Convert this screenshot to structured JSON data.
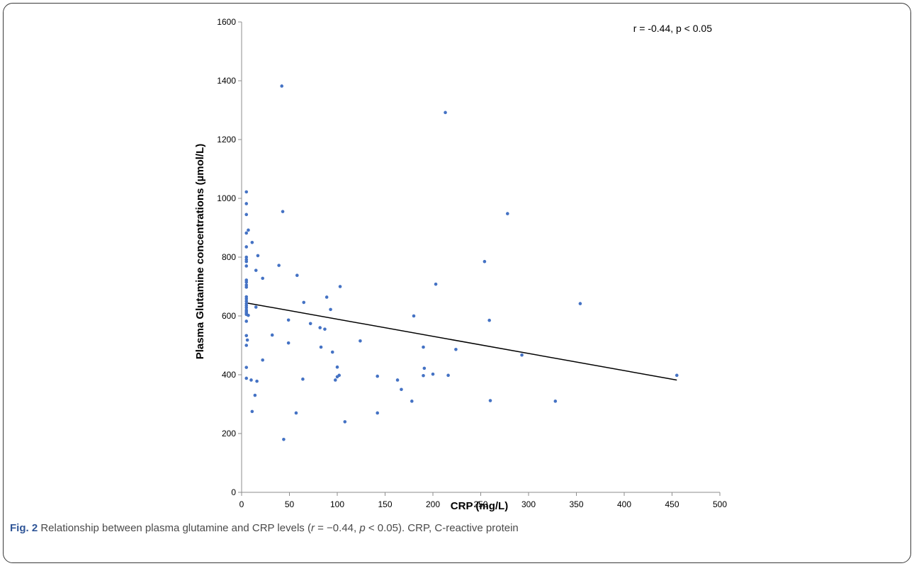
{
  "chart_data": {
    "type": "scatter",
    "xlabel": "CRP (mg/L)",
    "ylabel": "Plasma Glutamine concentrations (µmol/L)",
    "xlim": [
      0,
      500
    ],
    "ylim": [
      0,
      1600
    ],
    "x_ticks": [
      "0",
      "50",
      "100",
      "150",
      "200",
      "250",
      "300",
      "350",
      "400",
      "450",
      "500"
    ],
    "y_ticks": [
      "0",
      "200",
      "400",
      "600",
      "800",
      "1000",
      "1200",
      "1400",
      "1600"
    ],
    "grid": false,
    "annotation": "r = -0.44, p < 0.05",
    "marker_color": "#4472c4",
    "trendline": {
      "x": [
        4,
        455
      ],
      "y": [
        645,
        382
      ],
      "color": "#000000"
    },
    "points": [
      {
        "x": 5,
        "y": 1022
      },
      {
        "x": 5,
        "y": 982
      },
      {
        "x": 5,
        "y": 945
      },
      {
        "x": 7,
        "y": 892
      },
      {
        "x": 5,
        "y": 882
      },
      {
        "x": 5,
        "y": 835
      },
      {
        "x": 5,
        "y": 800
      },
      {
        "x": 5,
        "y": 792
      },
      {
        "x": 5,
        "y": 785
      },
      {
        "x": 5,
        "y": 770
      },
      {
        "x": 5,
        "y": 722
      },
      {
        "x": 5,
        "y": 715
      },
      {
        "x": 5,
        "y": 705
      },
      {
        "x": 5,
        "y": 698
      },
      {
        "x": 5,
        "y": 665
      },
      {
        "x": 5,
        "y": 658
      },
      {
        "x": 5,
        "y": 650
      },
      {
        "x": 5,
        "y": 642
      },
      {
        "x": 5,
        "y": 635
      },
      {
        "x": 5,
        "y": 628
      },
      {
        "x": 5,
        "y": 620
      },
      {
        "x": 5,
        "y": 615
      },
      {
        "x": 5,
        "y": 610
      },
      {
        "x": 5,
        "y": 605
      },
      {
        "x": 5,
        "y": 582
      },
      {
        "x": 5,
        "y": 533
      },
      {
        "x": 6,
        "y": 518
      },
      {
        "x": 5,
        "y": 500
      },
      {
        "x": 5,
        "y": 425
      },
      {
        "x": 5,
        "y": 388
      },
      {
        "x": 7,
        "y": 602
      },
      {
        "x": 11,
        "y": 850
      },
      {
        "x": 17,
        "y": 805
      },
      {
        "x": 15,
        "y": 755
      },
      {
        "x": 22,
        "y": 728
      },
      {
        "x": 15,
        "y": 630
      },
      {
        "x": 10,
        "y": 382
      },
      {
        "x": 16,
        "y": 378
      },
      {
        "x": 22,
        "y": 450
      },
      {
        "x": 14,
        "y": 330
      },
      {
        "x": 11,
        "y": 275
      },
      {
        "x": 42,
        "y": 1382
      },
      {
        "x": 43,
        "y": 955
      },
      {
        "x": 39,
        "y": 772
      },
      {
        "x": 58,
        "y": 738
      },
      {
        "x": 65,
        "y": 646
      },
      {
        "x": 32,
        "y": 535
      },
      {
        "x": 49,
        "y": 586
      },
      {
        "x": 49,
        "y": 508
      },
      {
        "x": 64,
        "y": 385
      },
      {
        "x": 44,
        "y": 180
      },
      {
        "x": 57,
        "y": 270
      },
      {
        "x": 72,
        "y": 574
      },
      {
        "x": 82,
        "y": 560
      },
      {
        "x": 87,
        "y": 555
      },
      {
        "x": 83,
        "y": 494
      },
      {
        "x": 89,
        "y": 664
      },
      {
        "x": 93,
        "y": 622
      },
      {
        "x": 95,
        "y": 477
      },
      {
        "x": 103,
        "y": 700
      },
      {
        "x": 100,
        "y": 426
      },
      {
        "x": 102,
        "y": 398
      },
      {
        "x": 100,
        "y": 393
      },
      {
        "x": 98,
        "y": 382
      },
      {
        "x": 108,
        "y": 240
      },
      {
        "x": 124,
        "y": 515
      },
      {
        "x": 142,
        "y": 395
      },
      {
        "x": 142,
        "y": 270
      },
      {
        "x": 163,
        "y": 382
      },
      {
        "x": 167,
        "y": 350
      },
      {
        "x": 178,
        "y": 310
      },
      {
        "x": 180,
        "y": 600
      },
      {
        "x": 190,
        "y": 494
      },
      {
        "x": 191,
        "y": 422
      },
      {
        "x": 190,
        "y": 397
      },
      {
        "x": 200,
        "y": 402
      },
      {
        "x": 203,
        "y": 708
      },
      {
        "x": 213,
        "y": 1292
      },
      {
        "x": 216,
        "y": 398
      },
      {
        "x": 224,
        "y": 486
      },
      {
        "x": 254,
        "y": 785
      },
      {
        "x": 259,
        "y": 585
      },
      {
        "x": 260,
        "y": 312
      },
      {
        "x": 278,
        "y": 948
      },
      {
        "x": 293,
        "y": 467
      },
      {
        "x": 328,
        "y": 310
      },
      {
        "x": 354,
        "y": 642
      },
      {
        "x": 455,
        "y": 398
      }
    ]
  },
  "caption": {
    "label": "Fig. 2",
    "text_before_r": " Relationship between plasma glutamine and CRP levels (",
    "r_symbol": "r",
    "r_value": " = −0.44, ",
    "p_symbol": "p",
    "p_value": " < 0.05). CRP, C-reactive protein"
  }
}
